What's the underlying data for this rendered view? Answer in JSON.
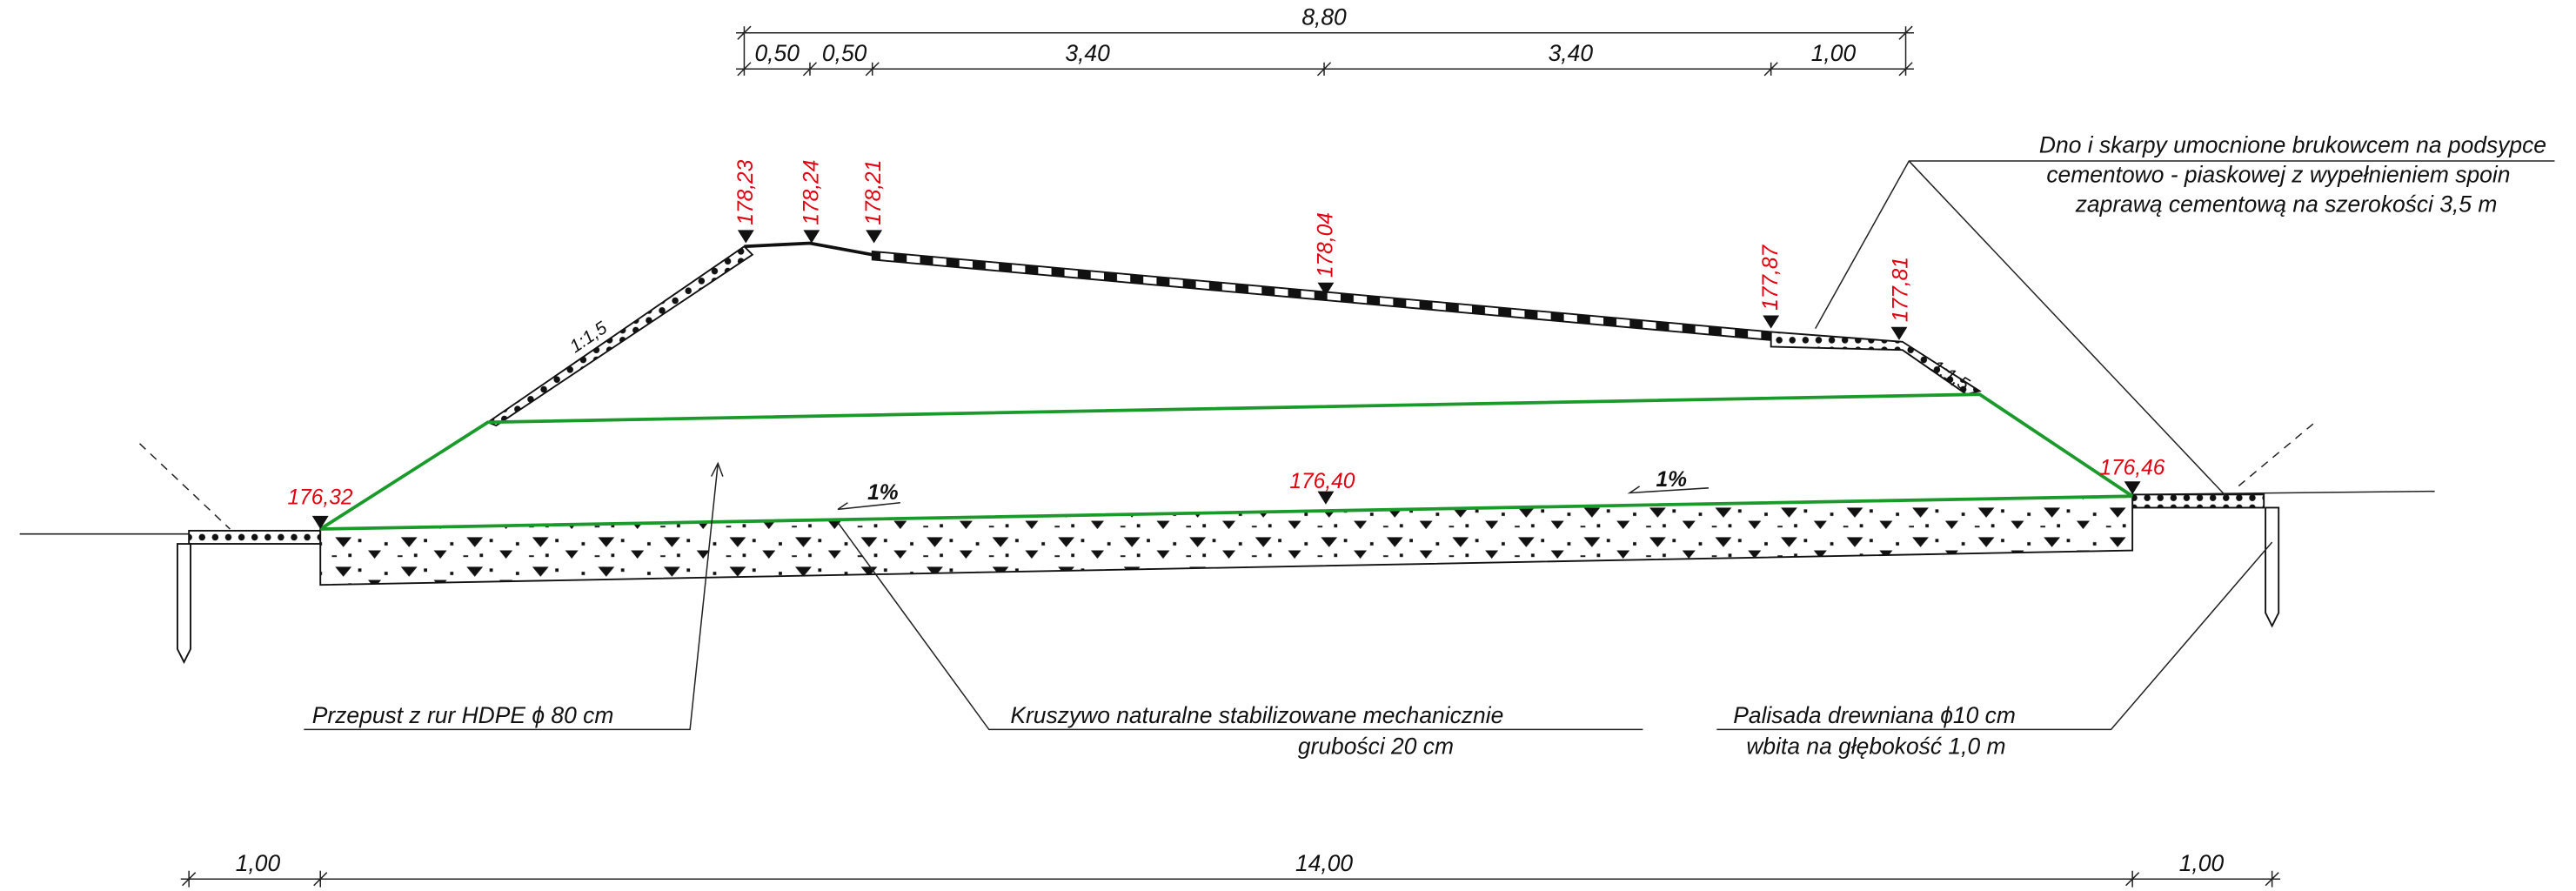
{
  "top_dimensions": {
    "total": "8,80",
    "segments": [
      "0,50",
      "0,50",
      "3,40",
      "3,40",
      "1,00"
    ]
  },
  "elevations": [
    "178,23",
    "178,24",
    "178,21",
    "178,04",
    "177,87",
    "177,81",
    "176,32",
    "176,40",
    "176,46"
  ],
  "slopes": [
    "1:1,5",
    "1:1,5"
  ],
  "gradients": [
    "1%",
    "1%"
  ],
  "labels": {
    "culvert": "Przepust z rur HDPE ϕ 80 cm",
    "aggregate": [
      "Kruszywo naturalne stabilizowane mechanicznie",
      "grubości 20 cm"
    ],
    "palisade": [
      "Palisada drewniana ϕ10 cm",
      "wbita na głębokość 1,0 m"
    ],
    "paving": [
      "Dno i skarpy umocnione brukowcem na podsypce",
      "cementowo - piaskowej z wypełnieniem spoin",
      "zaprawą cementową na szerokości 3,5 m"
    ]
  },
  "bottom_dimensions": [
    "1,00",
    "14,00",
    "1,00"
  ]
}
